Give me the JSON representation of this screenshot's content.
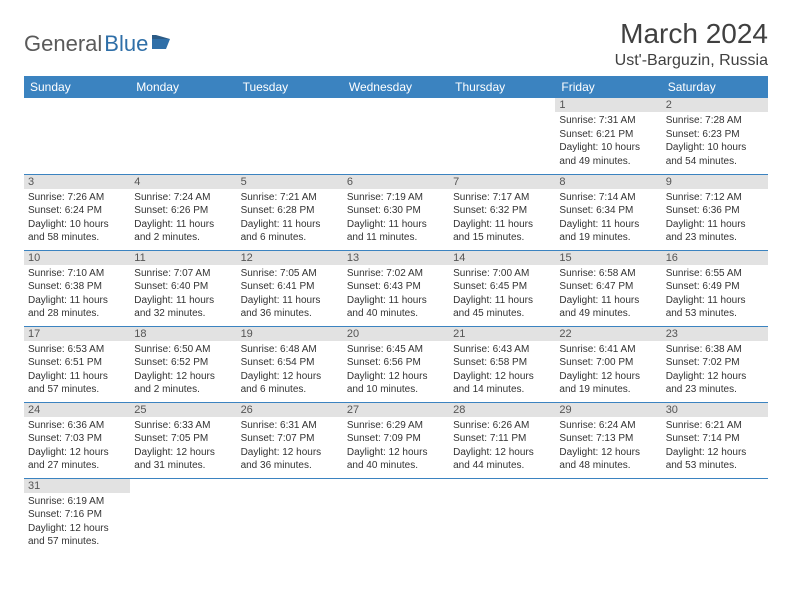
{
  "logo": {
    "general": "General",
    "blue": "Blue"
  },
  "header": {
    "month_title": "March 2024",
    "location": "Ust'-Barguzin, Russia"
  },
  "styling": {
    "header_bg": "#3b83c0",
    "header_text": "#ffffff",
    "daynum_bg": "#e2e2e2",
    "border_color": "#3b83c0",
    "body_text": "#333333",
    "logo_gray": "#5a5a5a",
    "logo_blue": "#2f6fa8",
    "page_bg": "#ffffff",
    "title_fontsize_pt": 28,
    "location_fontsize_pt": 16,
    "dayhead_fontsize_pt": 12,
    "cell_fontsize_pt": 10
  },
  "weekdays": [
    "Sunday",
    "Monday",
    "Tuesday",
    "Wednesday",
    "Thursday",
    "Friday",
    "Saturday"
  ],
  "weeks": [
    [
      {
        "day": "",
        "sunrise": "",
        "sunset": "",
        "daylight": "",
        "empty": true
      },
      {
        "day": "",
        "sunrise": "",
        "sunset": "",
        "daylight": "",
        "empty": true
      },
      {
        "day": "",
        "sunrise": "",
        "sunset": "",
        "daylight": "",
        "empty": true
      },
      {
        "day": "",
        "sunrise": "",
        "sunset": "",
        "daylight": "",
        "empty": true
      },
      {
        "day": "",
        "sunrise": "",
        "sunset": "",
        "daylight": "",
        "empty": true
      },
      {
        "day": "1",
        "sunrise": "Sunrise: 7:31 AM",
        "sunset": "Sunset: 6:21 PM",
        "daylight": "Daylight: 10 hours and 49 minutes."
      },
      {
        "day": "2",
        "sunrise": "Sunrise: 7:28 AM",
        "sunset": "Sunset: 6:23 PM",
        "daylight": "Daylight: 10 hours and 54 minutes."
      }
    ],
    [
      {
        "day": "3",
        "sunrise": "Sunrise: 7:26 AM",
        "sunset": "Sunset: 6:24 PM",
        "daylight": "Daylight: 10 hours and 58 minutes."
      },
      {
        "day": "4",
        "sunrise": "Sunrise: 7:24 AM",
        "sunset": "Sunset: 6:26 PM",
        "daylight": "Daylight: 11 hours and 2 minutes."
      },
      {
        "day": "5",
        "sunrise": "Sunrise: 7:21 AM",
        "sunset": "Sunset: 6:28 PM",
        "daylight": "Daylight: 11 hours and 6 minutes."
      },
      {
        "day": "6",
        "sunrise": "Sunrise: 7:19 AM",
        "sunset": "Sunset: 6:30 PM",
        "daylight": "Daylight: 11 hours and 11 minutes."
      },
      {
        "day": "7",
        "sunrise": "Sunrise: 7:17 AM",
        "sunset": "Sunset: 6:32 PM",
        "daylight": "Daylight: 11 hours and 15 minutes."
      },
      {
        "day": "8",
        "sunrise": "Sunrise: 7:14 AM",
        "sunset": "Sunset: 6:34 PM",
        "daylight": "Daylight: 11 hours and 19 minutes."
      },
      {
        "day": "9",
        "sunrise": "Sunrise: 7:12 AM",
        "sunset": "Sunset: 6:36 PM",
        "daylight": "Daylight: 11 hours and 23 minutes."
      }
    ],
    [
      {
        "day": "10",
        "sunrise": "Sunrise: 7:10 AM",
        "sunset": "Sunset: 6:38 PM",
        "daylight": "Daylight: 11 hours and 28 minutes."
      },
      {
        "day": "11",
        "sunrise": "Sunrise: 7:07 AM",
        "sunset": "Sunset: 6:40 PM",
        "daylight": "Daylight: 11 hours and 32 minutes."
      },
      {
        "day": "12",
        "sunrise": "Sunrise: 7:05 AM",
        "sunset": "Sunset: 6:41 PM",
        "daylight": "Daylight: 11 hours and 36 minutes."
      },
      {
        "day": "13",
        "sunrise": "Sunrise: 7:02 AM",
        "sunset": "Sunset: 6:43 PM",
        "daylight": "Daylight: 11 hours and 40 minutes."
      },
      {
        "day": "14",
        "sunrise": "Sunrise: 7:00 AM",
        "sunset": "Sunset: 6:45 PM",
        "daylight": "Daylight: 11 hours and 45 minutes."
      },
      {
        "day": "15",
        "sunrise": "Sunrise: 6:58 AM",
        "sunset": "Sunset: 6:47 PM",
        "daylight": "Daylight: 11 hours and 49 minutes."
      },
      {
        "day": "16",
        "sunrise": "Sunrise: 6:55 AM",
        "sunset": "Sunset: 6:49 PM",
        "daylight": "Daylight: 11 hours and 53 minutes."
      }
    ],
    [
      {
        "day": "17",
        "sunrise": "Sunrise: 6:53 AM",
        "sunset": "Sunset: 6:51 PM",
        "daylight": "Daylight: 11 hours and 57 minutes."
      },
      {
        "day": "18",
        "sunrise": "Sunrise: 6:50 AM",
        "sunset": "Sunset: 6:52 PM",
        "daylight": "Daylight: 12 hours and 2 minutes."
      },
      {
        "day": "19",
        "sunrise": "Sunrise: 6:48 AM",
        "sunset": "Sunset: 6:54 PM",
        "daylight": "Daylight: 12 hours and 6 minutes."
      },
      {
        "day": "20",
        "sunrise": "Sunrise: 6:45 AM",
        "sunset": "Sunset: 6:56 PM",
        "daylight": "Daylight: 12 hours and 10 minutes."
      },
      {
        "day": "21",
        "sunrise": "Sunrise: 6:43 AM",
        "sunset": "Sunset: 6:58 PM",
        "daylight": "Daylight: 12 hours and 14 minutes."
      },
      {
        "day": "22",
        "sunrise": "Sunrise: 6:41 AM",
        "sunset": "Sunset: 7:00 PM",
        "daylight": "Daylight: 12 hours and 19 minutes."
      },
      {
        "day": "23",
        "sunrise": "Sunrise: 6:38 AM",
        "sunset": "Sunset: 7:02 PM",
        "daylight": "Daylight: 12 hours and 23 minutes."
      }
    ],
    [
      {
        "day": "24",
        "sunrise": "Sunrise: 6:36 AM",
        "sunset": "Sunset: 7:03 PM",
        "daylight": "Daylight: 12 hours and 27 minutes."
      },
      {
        "day": "25",
        "sunrise": "Sunrise: 6:33 AM",
        "sunset": "Sunset: 7:05 PM",
        "daylight": "Daylight: 12 hours and 31 minutes."
      },
      {
        "day": "26",
        "sunrise": "Sunrise: 6:31 AM",
        "sunset": "Sunset: 7:07 PM",
        "daylight": "Daylight: 12 hours and 36 minutes."
      },
      {
        "day": "27",
        "sunrise": "Sunrise: 6:29 AM",
        "sunset": "Sunset: 7:09 PM",
        "daylight": "Daylight: 12 hours and 40 minutes."
      },
      {
        "day": "28",
        "sunrise": "Sunrise: 6:26 AM",
        "sunset": "Sunset: 7:11 PM",
        "daylight": "Daylight: 12 hours and 44 minutes."
      },
      {
        "day": "29",
        "sunrise": "Sunrise: 6:24 AM",
        "sunset": "Sunset: 7:13 PM",
        "daylight": "Daylight: 12 hours and 48 minutes."
      },
      {
        "day": "30",
        "sunrise": "Sunrise: 6:21 AM",
        "sunset": "Sunset: 7:14 PM",
        "daylight": "Daylight: 12 hours and 53 minutes."
      }
    ],
    [
      {
        "day": "31",
        "sunrise": "Sunrise: 6:19 AM",
        "sunset": "Sunset: 7:16 PM",
        "daylight": "Daylight: 12 hours and 57 minutes."
      },
      {
        "day": "",
        "sunrise": "",
        "sunset": "",
        "daylight": "",
        "empty": true
      },
      {
        "day": "",
        "sunrise": "",
        "sunset": "",
        "daylight": "",
        "empty": true
      },
      {
        "day": "",
        "sunrise": "",
        "sunset": "",
        "daylight": "",
        "empty": true
      },
      {
        "day": "",
        "sunrise": "",
        "sunset": "",
        "daylight": "",
        "empty": true
      },
      {
        "day": "",
        "sunrise": "",
        "sunset": "",
        "daylight": "",
        "empty": true
      },
      {
        "day": "",
        "sunrise": "",
        "sunset": "",
        "daylight": "",
        "empty": true
      }
    ]
  ]
}
